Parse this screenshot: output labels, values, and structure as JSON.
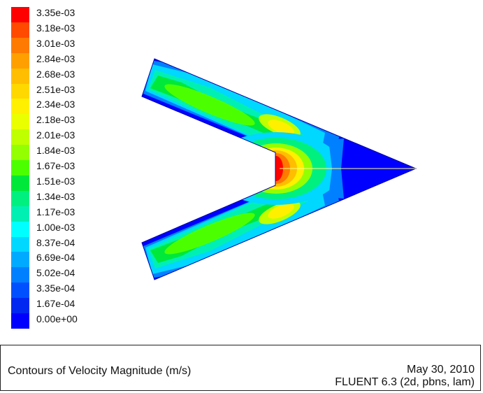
{
  "colorbar": {
    "labels": [
      "3.35e-03",
      "3.18e-03",
      "3.01e-03",
      "2.84e-03",
      "2.68e-03",
      "2.51e-03",
      "2.34e-03",
      "2.18e-03",
      "2.01e-03",
      "1.84e-03",
      "1.67e-03",
      "1.51e-03",
      "1.34e-03",
      "1.17e-03",
      "1.00e-03",
      "8.37e-04",
      "6.69e-04",
      "5.02e-04",
      "3.35e-04",
      "1.67e-04",
      "0.00e+00"
    ],
    "colors": [
      "#ff0000",
      "#ff4a00",
      "#ff7a00",
      "#ffa000",
      "#ffbe00",
      "#ffd800",
      "#fff000",
      "#eaff00",
      "#c0ff00",
      "#94ff00",
      "#4cff00",
      "#00e83a",
      "#00f080",
      "#00f0b4",
      "#00ffff",
      "#00d8ff",
      "#00aaff",
      "#0080ff",
      "#0050ff",
      "#0028f0",
      "#0000ff"
    ]
  },
  "footer": {
    "title": "Contours of Velocity Magnitude (m/s)",
    "date": "May 30, 2010",
    "version": "FLUENT 6.3 (2d, pbns, lam)"
  }
}
